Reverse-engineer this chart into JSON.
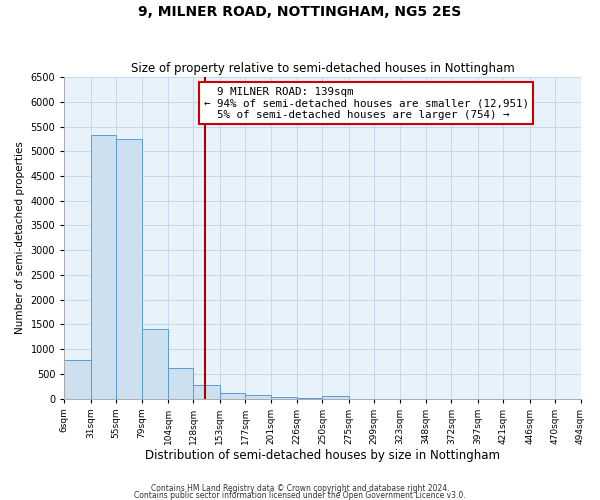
{
  "title": "9, MILNER ROAD, NOTTINGHAM, NG5 2ES",
  "subtitle": "Size of property relative to semi-detached houses in Nottingham",
  "xlabel": "Distribution of semi-detached houses by size in Nottingham",
  "ylabel": "Number of semi-detached properties",
  "property_label": "9 MILNER ROAD: 139sqm",
  "pct_smaller": 94,
  "count_smaller": 12951,
  "pct_larger": 5,
  "count_larger": 754,
  "bin_edges": [
    6,
    31,
    55,
    79,
    104,
    128,
    153,
    177,
    201,
    226,
    250,
    275,
    299,
    323,
    348,
    372,
    397,
    421,
    446,
    470,
    494
  ],
  "bin_labels": [
    "6sqm",
    "31sqm",
    "55sqm",
    "79sqm",
    "104sqm",
    "128sqm",
    "153sqm",
    "177sqm",
    "201sqm",
    "226sqm",
    "250sqm",
    "275sqm",
    "299sqm",
    "323sqm",
    "348sqm",
    "372sqm",
    "397sqm",
    "421sqm",
    "446sqm",
    "470sqm",
    "494sqm"
  ],
  "counts": [
    780,
    5320,
    5240,
    1400,
    620,
    270,
    120,
    70,
    30,
    10,
    50,
    0,
    0,
    0,
    0,
    0,
    0,
    0,
    0,
    0
  ],
  "bar_facecolor": "#cce0f0",
  "bar_edgecolor": "#5b9bd5",
  "vline_color": "#aa0000",
  "vline_x": 139,
  "box_facecolor": "#ffffff",
  "box_edgecolor": "#cc0000",
  "grid_color": "#c8d8e8",
  "bg_color": "#e8f2fb",
  "fig_bg_color": "#ffffff",
  "ylim": [
    0,
    6500
  ],
  "yticks": [
    0,
    500,
    1000,
    1500,
    2000,
    2500,
    3000,
    3500,
    4000,
    4500,
    5000,
    5500,
    6000,
    6500
  ],
  "footer1": "Contains HM Land Registry data © Crown copyright and database right 2024.",
  "footer2": "Contains public sector information licensed under the Open Government Licence v3.0."
}
